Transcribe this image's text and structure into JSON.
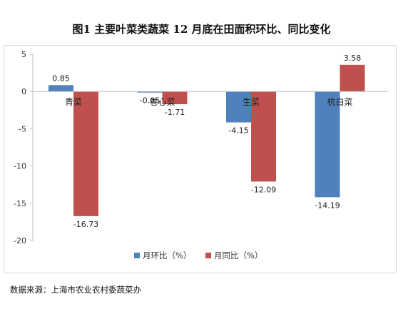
{
  "title": "图1 主要叶菜类蔬菜 12 月底在田面积环比、同比变化",
  "source": "数据来源：上海市农业农村委蔬菜办",
  "chart_data": {
    "type": "bar",
    "title": "图1 主要叶菜类蔬菜 12 月底在田面积环比、同比变化",
    "categories": [
      "青菜",
      "卷心菜",
      "生菜",
      "杭白菜"
    ],
    "series": [
      {
        "name": "月环比（%）",
        "color": "#4f81bd",
        "values": [
          0.85,
          -0.05,
          -4.15,
          -14.19
        ]
      },
      {
        "name": "月同比（%）",
        "color": "#c0504d",
        "values": [
          -16.73,
          -1.71,
          -12.09,
          3.58
        ]
      }
    ],
    "ylim": [
      -20,
      5
    ],
    "yticks": [
      5,
      0,
      -5,
      -10,
      -15,
      -20
    ],
    "grid": false,
    "legend": "bottom"
  }
}
